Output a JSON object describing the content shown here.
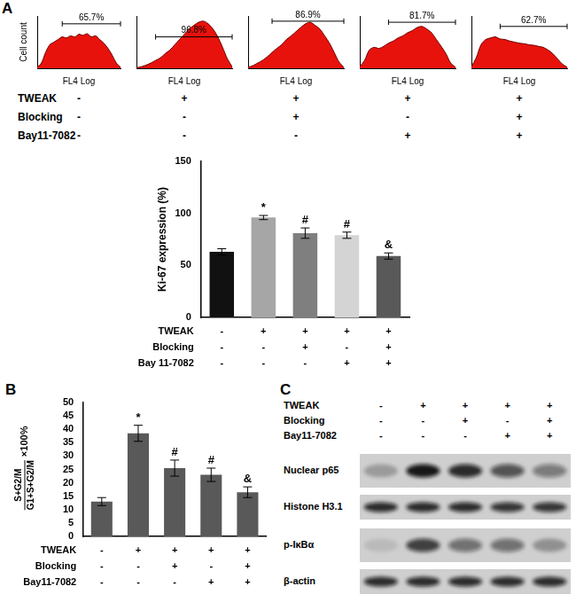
{
  "panel_labels": [
    "A",
    "B",
    "C"
  ],
  "histogram_conditions": [
    {
      "label": "TWEAK",
      "signs": [
        "-",
        "+",
        "+",
        "+",
        "+"
      ]
    },
    {
      "label": "Blocking",
      "signs": [
        "-",
        "-",
        "+",
        "-",
        "+"
      ]
    },
    {
      "label": "Bay11-7082",
      "signs": [
        "-",
        "-",
        "-",
        "+",
        "+"
      ]
    }
  ],
  "chart_data": [
    {
      "type": "area",
      "x_label": "FL4 Log",
      "y_label": "Cell count",
      "x": [
        0,
        5,
        10,
        15,
        20,
        25,
        30,
        35,
        40,
        45,
        50,
        55,
        60,
        65,
        70,
        75,
        80,
        85,
        90,
        95,
        100
      ],
      "values": [
        2,
        10,
        30,
        45,
        50,
        55,
        60,
        58,
        62,
        60,
        65,
        63,
        66,
        60,
        62,
        55,
        48,
        38,
        25,
        10,
        2
      ],
      "color": "#e8120c",
      "xlim": [
        0,
        100
      ],
      "ylim": [
        0,
        100
      ],
      "tick_labels": false,
      "grid": false,
      "gate": {
        "x": [
          30,
          100
        ],
        "y": 85,
        "label": "65.7%"
      }
    },
    {
      "type": "area",
      "x_label": "FL4 Log",
      "x": [
        0,
        5,
        10,
        15,
        20,
        25,
        30,
        35,
        40,
        45,
        50,
        55,
        60,
        65,
        70,
        75,
        80,
        85,
        90,
        95,
        100
      ],
      "values": [
        1,
        3,
        6,
        10,
        15,
        20,
        28,
        35,
        45,
        55,
        65,
        75,
        82,
        88,
        90,
        85,
        75,
        60,
        40,
        18,
        3
      ],
      "color": "#e8120c",
      "xlim": [
        0,
        100
      ],
      "ylim": [
        0,
        100
      ],
      "tick_labels": false,
      "grid": false,
      "gate": {
        "x": [
          20,
          100
        ],
        "y": 60,
        "label": "96.8%"
      }
    },
    {
      "type": "area",
      "x_label": "FL4 Log",
      "x": [
        0,
        5,
        10,
        15,
        20,
        25,
        30,
        35,
        40,
        45,
        50,
        55,
        60,
        65,
        70,
        75,
        80,
        85,
        90,
        95,
        100
      ],
      "values": [
        2,
        5,
        10,
        15,
        22,
        30,
        38,
        45,
        55,
        62,
        70,
        78,
        85,
        88,
        82,
        75,
        62,
        48,
        30,
        12,
        2
      ],
      "color": "#e8120c",
      "xlim": [
        0,
        100
      ],
      "ylim": [
        0,
        100
      ],
      "tick_labels": false,
      "grid": false,
      "gate": {
        "x": [
          25,
          100
        ],
        "y": 90,
        "label": "86.9%"
      }
    },
    {
      "type": "area",
      "x_label": "FL4 Log",
      "x": [
        0,
        5,
        10,
        15,
        20,
        25,
        30,
        35,
        40,
        45,
        50,
        55,
        60,
        65,
        70,
        75,
        80,
        85,
        90,
        95,
        100
      ],
      "values": [
        3,
        15,
        35,
        40,
        38,
        42,
        48,
        52,
        58,
        62,
        68,
        72,
        78,
        80,
        75,
        68,
        55,
        42,
        28,
        10,
        2
      ],
      "color": "#e8120c",
      "xlim": [
        0,
        100
      ],
      "ylim": [
        0,
        100
      ],
      "tick_labels": false,
      "grid": false,
      "gate": {
        "x": [
          30,
          100
        ],
        "y": 88,
        "label": "81.7%"
      }
    },
    {
      "type": "area",
      "x_label": "FL4 Log",
      "x": [
        0,
        5,
        10,
        15,
        20,
        25,
        30,
        35,
        40,
        45,
        50,
        55,
        60,
        65,
        70,
        75,
        80,
        85,
        90,
        95,
        100
      ],
      "values": [
        3,
        20,
        45,
        55,
        58,
        60,
        56,
        55,
        52,
        50,
        48,
        47,
        45,
        44,
        42,
        40,
        35,
        28,
        18,
        8,
        2
      ],
      "color": "#e8120c",
      "xlim": [
        0,
        100
      ],
      "ylim": [
        0,
        100
      ],
      "tick_labels": false,
      "grid": false,
      "gate": {
        "x": [
          30,
          100
        ],
        "y": 80,
        "label": "62.7%"
      }
    },
    {
      "type": "bar",
      "y_label": "Ki-67 expression (%)",
      "categories": [
        null,
        null,
        null,
        null,
        null
      ],
      "values": [
        63,
        96,
        81,
        79,
        59
      ],
      "errors": [
        3,
        2,
        5,
        3,
        3
      ],
      "significance": [
        null,
        "*",
        "#",
        "#",
        "&"
      ],
      "colors": [
        "#111111",
        "#a6a6a6",
        "#7f7f7f",
        "#d4d4d4",
        "#595959"
      ],
      "ylim": [
        0,
        150
      ],
      "yticks": [
        0,
        50,
        100,
        150
      ],
      "grid": false,
      "tick_labels": "y",
      "conditions": [
        {
          "label": "TWEAK",
          "signs": [
            "-",
            "+",
            "+",
            "+",
            "+"
          ]
        },
        {
          "label": "Blocking",
          "signs": [
            "-",
            "-",
            "+",
            "-",
            "+"
          ]
        },
        {
          "label": "Bay 11-7082",
          "signs": [
            "-",
            "-",
            "-",
            "+",
            "+"
          ]
        }
      ]
    },
    {
      "type": "bar",
      "y_label": {
        "numerator": "S+G2/M",
        "denominator": "G1+S+G2/M",
        "suffix": "×100%"
      },
      "categories": [
        null,
        null,
        null,
        null,
        null
      ],
      "values": [
        13,
        38.5,
        25.5,
        23,
        16.5
      ],
      "errors": [
        1.5,
        3,
        3,
        2.5,
        2
      ],
      "significance": [
        null,
        "*",
        "#",
        "#",
        "&"
      ],
      "color": "#595959",
      "ylim": [
        0,
        50
      ],
      "yticks": [
        0,
        5,
        10,
        15,
        20,
        25,
        30,
        35,
        40,
        45,
        50
      ],
      "grid": false,
      "tick_labels": "y",
      "conditions": [
        {
          "label": "TWEAK",
          "signs": [
            "-",
            "+",
            "+",
            "+",
            "+"
          ]
        },
        {
          "label": "Blocking",
          "signs": [
            "-",
            "-",
            "+",
            "-",
            "+"
          ]
        },
        {
          "label": "Bay11-7082",
          "signs": [
            "-",
            "-",
            "-",
            "+",
            "+"
          ]
        }
      ]
    }
  ],
  "blot": {
    "conditions": [
      {
        "label": "TWEAK",
        "signs": [
          "-",
          "+",
          "+",
          "+",
          "+"
        ]
      },
      {
        "label": "Blocking",
        "signs": [
          "-",
          "-",
          "+",
          "-",
          "+"
        ]
      },
      {
        "label": "Bay11-7082",
        "signs": [
          "-",
          "-",
          "-",
          "+",
          "+"
        ]
      }
    ],
    "rows": [
      {
        "label": "Nuclear p65",
        "band_intensity": [
          0.25,
          0.95,
          0.85,
          0.65,
          0.45
        ]
      },
      {
        "label": "Histone H3.1",
        "band_intensity": [
          0.85,
          0.85,
          0.85,
          0.8,
          0.8
        ]
      },
      {
        "label": "p-IκBα",
        "band_intensity": [
          0.1,
          0.75,
          0.5,
          0.5,
          0.3
        ]
      },
      {
        "label": "β-actin",
        "band_intensity": [
          0.85,
          0.85,
          0.85,
          0.85,
          0.85
        ]
      }
    ]
  }
}
